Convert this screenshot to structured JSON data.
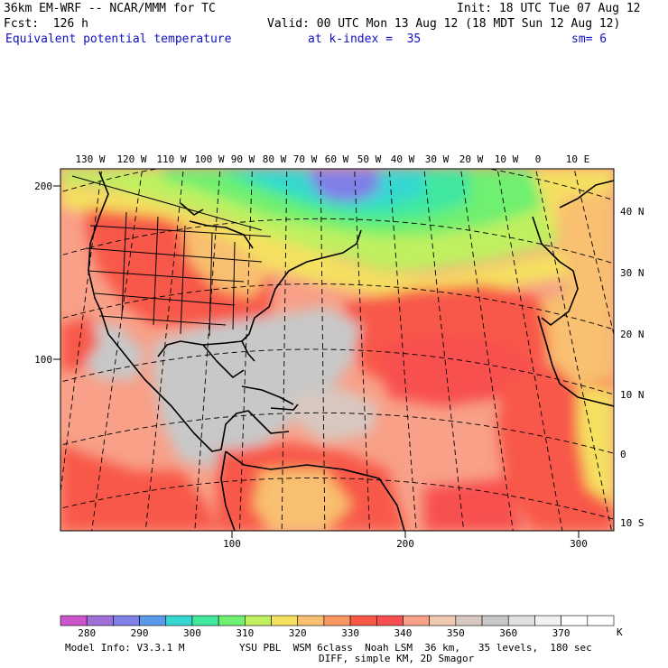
{
  "header": {
    "model_line": "36km EM-WRF -- NCAR/MMM for TC",
    "init_line": "Init: 18 UTC Tue 07 Aug 12",
    "fcst_line": "Fcst:  126 h",
    "valid_line": "Valid: 00 UTC Mon 13 Aug 12 (18 MDT Sun 12 Aug 12)",
    "field_name": "Equivalent potential temperature",
    "level_text": "at k-index =  35",
    "smooth_text": "sm= 6"
  },
  "map": {
    "lon_labels": [
      "130 W",
      "120 W",
      "110 W",
      "100 W",
      "90 W",
      "80 W",
      "70 W",
      "60 W",
      "50 W",
      "40 W",
      "30 W",
      "20 W",
      "10 W",
      "0",
      "10 E"
    ],
    "lat_labels": [
      "40 N",
      "30 N",
      "20 N",
      "10 N",
      "0",
      "10 S"
    ],
    "grid_x_labels": [
      "100",
      "200",
      "300"
    ],
    "grid_y_labels": [
      "200",
      "100"
    ]
  },
  "colorbar": {
    "unit": "K",
    "tick_labels": [
      "280",
      "290",
      "300",
      "310",
      "320",
      "330",
      "340",
      "350",
      "360",
      "370"
    ],
    "colors": [
      "#cc55cc",
      "#a070d8",
      "#7f7fe8",
      "#5a9ae8",
      "#35d8d0",
      "#40e8a0",
      "#70f070",
      "#c0f060",
      "#f5e060",
      "#f8c070",
      "#f89860",
      "#f85848",
      "#f85050",
      "#f8a088",
      "#f0c8b0",
      "#d8c8c0",
      "#c8c8c8",
      "#e0e0e0",
      "#f2f2f2",
      "#ffffff",
      "#ffffff"
    ]
  },
  "footer": {
    "line1_left": "Model Info: V3.3.1 M",
    "line1_right": "YSU PBL  WSM 6class  Noah LSM  36 km,   35 levels,  180 sec",
    "line2": "DIFF, simple KM, 2D Smagor"
  }
}
